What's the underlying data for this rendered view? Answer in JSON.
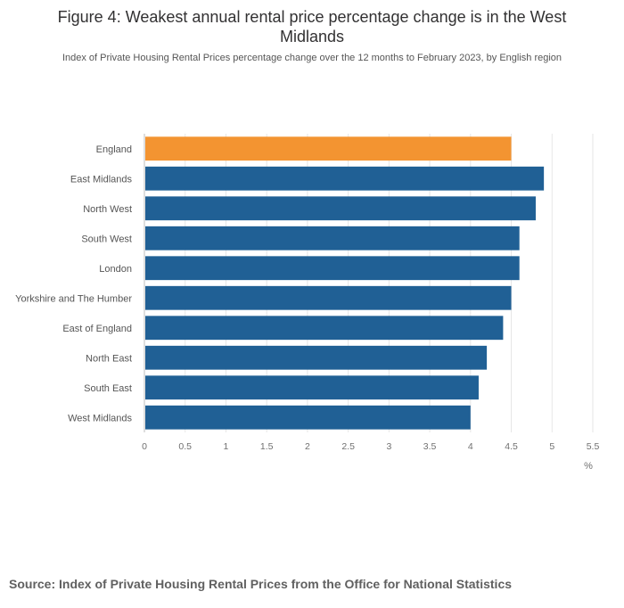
{
  "chart_data": {
    "type": "bar",
    "orientation": "horizontal",
    "title": "Figure 4: Weakest annual rental price percentage change is in the West Midlands",
    "subtitle": "Index of Private Housing Rental Prices percentage change over the 12 months to February 2023, by English region",
    "categories": [
      "England",
      "East Midlands",
      "North West",
      "South West",
      "London",
      "Yorkshire and The Humber",
      "East of England",
      "North East",
      "South East",
      "West Midlands"
    ],
    "values": [
      4.5,
      4.9,
      4.8,
      4.6,
      4.6,
      4.5,
      4.4,
      4.2,
      4.1,
      4.0
    ],
    "highlight": [
      "England"
    ],
    "xlabel": "%",
    "ylabel": "",
    "xlim": [
      0,
      5.5
    ],
    "xticks": [
      "0",
      "0.5",
      "1",
      "1.5",
      "2",
      "2.5",
      "3",
      "3.5",
      "4",
      "4.5",
      "5",
      "5.5"
    ],
    "grid": true,
    "colors": {
      "highlight": "#f39431",
      "default": "#206095",
      "grid": "#e6e6e6",
      "axis": "#bebebe",
      "tick_text": "#707070"
    }
  },
  "source": "Source: Index of Private Housing Rental Prices from the Office for National Statistics"
}
